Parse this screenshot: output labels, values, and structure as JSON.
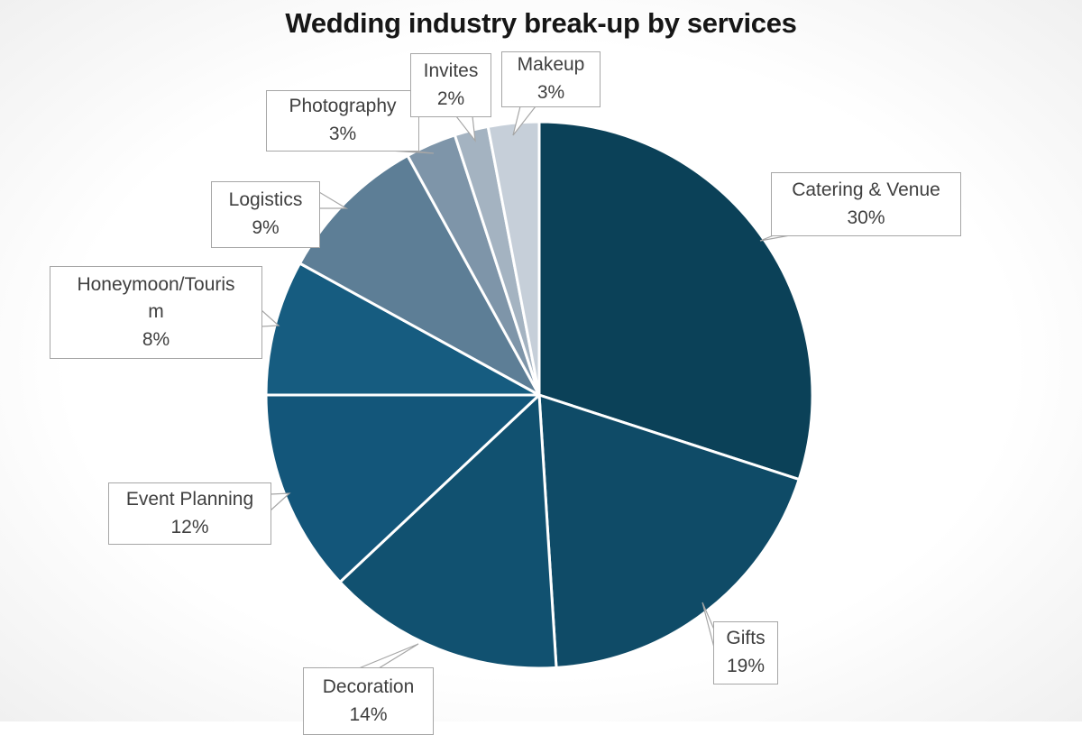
{
  "chart_data": {
    "type": "pie",
    "title": "Wedding industry break-up by services",
    "direction": "clockwise",
    "start_angle_deg": 0,
    "total": 100,
    "slices": [
      {
        "id": "catering",
        "label": "Catering & Venue",
        "value": 30,
        "pct_label": "30%",
        "color": "#0b4158",
        "callout_lines": [
          "Catering & Venue",
          "30%"
        ]
      },
      {
        "id": "gifts",
        "label": "Gifts",
        "value": 19,
        "pct_label": "19%",
        "color": "#0f4b67",
        "callout_lines": [
          "Gifts",
          "19%"
        ]
      },
      {
        "id": "decoration",
        "label": "Decoration",
        "value": 14,
        "pct_label": "14%",
        "color": "#115170",
        "callout_lines": [
          "Decoration",
          "14%"
        ]
      },
      {
        "id": "event",
        "label": "Event Planning",
        "value": 12,
        "pct_label": "12%",
        "color": "#13567a",
        "callout_lines": [
          "Event Planning",
          "12%"
        ]
      },
      {
        "id": "honeymoon",
        "label": "Honeymoon/Tourism",
        "value": 8,
        "pct_label": "8%",
        "color": "#165c80",
        "callout_lines": [
          "Honeymoon/Touris",
          "m",
          "8%"
        ]
      },
      {
        "id": "logistics",
        "label": "Logistics",
        "value": 9,
        "pct_label": "9%",
        "color": "#5d7e96",
        "callout_lines": [
          "Logistics",
          "9%"
        ]
      },
      {
        "id": "photography",
        "label": "Photography",
        "value": 3,
        "pct_label": "3%",
        "color": "#7e95a9",
        "callout_lines": [
          "Photography",
          "3%"
        ]
      },
      {
        "id": "invites",
        "label": "Invites",
        "value": 2,
        "pct_label": "2%",
        "color": "#a4b3c1",
        "callout_lines": [
          "Invites",
          "2%"
        ]
      },
      {
        "id": "makeup",
        "label": "Makeup",
        "value": 3,
        "pct_label": "3%",
        "color": "#c6cfd9",
        "callout_lines": [
          "Makeup",
          "3%"
        ]
      }
    ],
    "slice_border_color": "#ffffff",
    "callout_style": {
      "bg": "#ffffff",
      "border": "#a6a6a6",
      "text": "#3f3f3f"
    },
    "title_color": "#161616"
  }
}
